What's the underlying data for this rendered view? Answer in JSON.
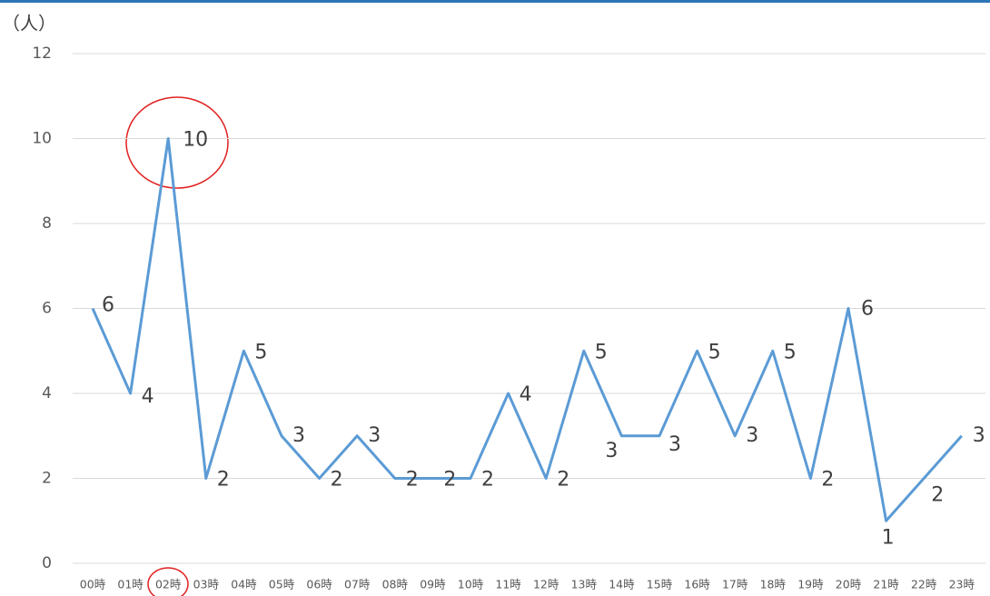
{
  "chart_data": {
    "type": "line",
    "axis_label": "（人）",
    "categories": [
      "00時",
      "01時",
      "02時",
      "03時",
      "04時",
      "05時",
      "06時",
      "07時",
      "08時",
      "09時",
      "10時",
      "11時",
      "12時",
      "13時",
      "14時",
      "15時",
      "16時",
      "17時",
      "18時",
      "19時",
      "20時",
      "21時",
      "22時",
      "23時"
    ],
    "series": [
      {
        "color": "#5b9bd5",
        "values": [
          6,
          4,
          10,
          2,
          5,
          3,
          2,
          3,
          2,
          2,
          2,
          4,
          2,
          5,
          3,
          3,
          5,
          3,
          5,
          2,
          6,
          1,
          2,
          3
        ]
      }
    ],
    "ylim": [
      0,
      12
    ],
    "yticks": [
      0,
      2,
      4,
      6,
      8,
      10,
      12
    ],
    "grid": true,
    "data_labels": true
  }
}
